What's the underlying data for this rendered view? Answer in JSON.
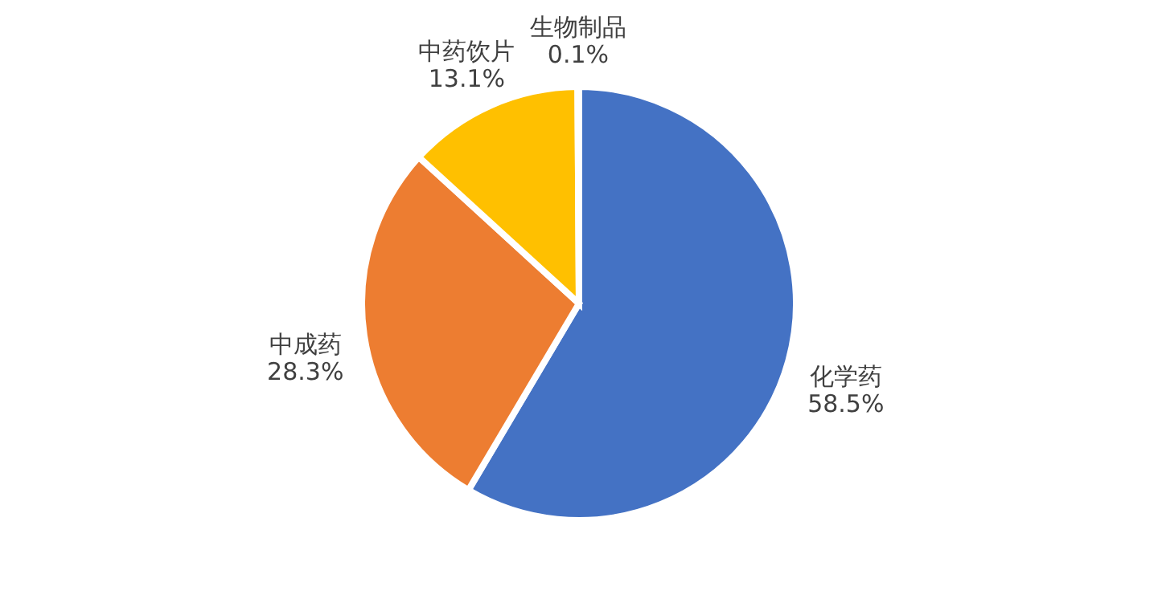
{
  "chart_data": {
    "type": "pie",
    "categories": [
      "化学药",
      "中成药",
      "中药饮片",
      "生物制品"
    ],
    "values": [
      58.5,
      28.3,
      13.1,
      0.1
    ],
    "value_labels": [
      "58.5%",
      "28.3%",
      "13.1%",
      "0.1%"
    ],
    "colors": [
      "#4472c4",
      "#ed7d31",
      "#ffc000",
      "#a5a5a5"
    ],
    "legend": false
  }
}
